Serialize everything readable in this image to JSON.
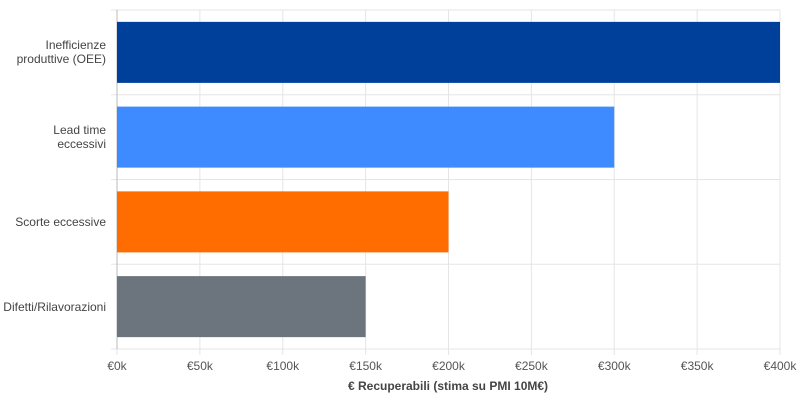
{
  "chart_data": {
    "type": "bar",
    "orientation": "horizontal",
    "categories": [
      "Inefficienze produttive (OEE)",
      "Lead time eccessivi",
      "Scorte eccessive",
      "Difetti/Rilavorazioni"
    ],
    "values": [
      400000,
      300000,
      200000,
      150000
    ],
    "colors": [
      "#00409a",
      "#3d8bff",
      "#ff6d00",
      "#6c757d"
    ],
    "xlabel": "€ Recuperabili (stima su PMI 10M€)",
    "xlim": [
      0,
      400000
    ],
    "xticks": [
      {
        "value": 0,
        "label": "€0k"
      },
      {
        "value": 50000,
        "label": "€50k"
      },
      {
        "value": 100000,
        "label": "€100k"
      },
      {
        "value": 150000,
        "label": "€150k"
      },
      {
        "value": 200000,
        "label": "€200k"
      },
      {
        "value": 250000,
        "label": "€250k"
      },
      {
        "value": 300000,
        "label": "€300k"
      },
      {
        "value": 350000,
        "label": "€350k"
      },
      {
        "value": 400000,
        "label": "€400k"
      }
    ],
    "grid": true
  }
}
